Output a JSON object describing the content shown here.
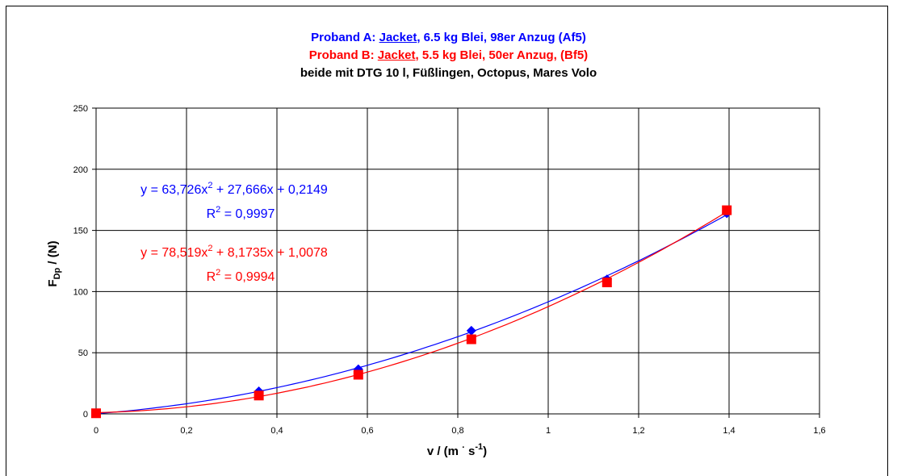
{
  "chart_data": {
    "type": "scatter",
    "title": {
      "line_a": {
        "prefix": "Proband A: ",
        "underlined": "Jacket",
        "suffix": ", 6.5 kg Blei, 98er Anzug  (Af5)",
        "color": "#0000ff"
      },
      "line_b": {
        "prefix": "Proband B: ",
        "underlined": "Jacket",
        "suffix": ", 5.5 kg Blei, 50er Anzug,  (Bf5)",
        "color": "#ff0000"
      },
      "line_c": {
        "text": "beide mit DTG 10 l, Füßlingen, Octopus, Mares Volo",
        "color": "#000000"
      }
    },
    "xlabel": {
      "prefix": "v / (m ",
      "dot": "·",
      "mid": " s",
      "sup": "-1",
      "suffix": ")"
    },
    "ylabel": {
      "main": "F",
      "sub": "Dp",
      "rest": " / (N)"
    },
    "xlim": [
      0,
      1.6
    ],
    "ylim": [
      0,
      250
    ],
    "x_ticks": [
      "0",
      "0,2",
      "0,4",
      "0,6",
      "0,8",
      "1",
      "1,2",
      "1,4",
      "1,6"
    ],
    "y_ticks": [
      "0",
      "50",
      "100",
      "150",
      "200",
      "250"
    ],
    "grid": true,
    "series": [
      {
        "color": "#0000ff",
        "marker": "diamond",
        "x": [
          0,
          0.36,
          0.58,
          0.83,
          1.13,
          1.395
        ],
        "y": [
          0.5,
          18.5,
          36.5,
          68,
          110,
          164
        ],
        "trendline": {
          "a": 63.726,
          "b": 27.666,
          "c": 0.2149
        },
        "equation": {
          "p1": "y = 63,726x",
          "sup": "2",
          "p2": " + 27,666x + 0,2149",
          "r_label": "R",
          "r_sup": "2",
          "r_val": " = 0,9997"
        }
      },
      {
        "color": "#ff0000",
        "marker": "square",
        "x": [
          0,
          0.36,
          0.58,
          0.83,
          1.13,
          1.395
        ],
        "y": [
          0.5,
          15,
          32,
          61,
          107.5,
          166.5
        ],
        "trendline": {
          "a": 78.519,
          "b": 8.1735,
          "c": 1.0078
        },
        "equation": {
          "p1": "y = 78,519x",
          "sup": "2",
          "p2": " + 8,1735x + 1,0078",
          "r_label": "R",
          "r_sup": "2",
          "r_val": " = 0,9994"
        }
      }
    ]
  }
}
